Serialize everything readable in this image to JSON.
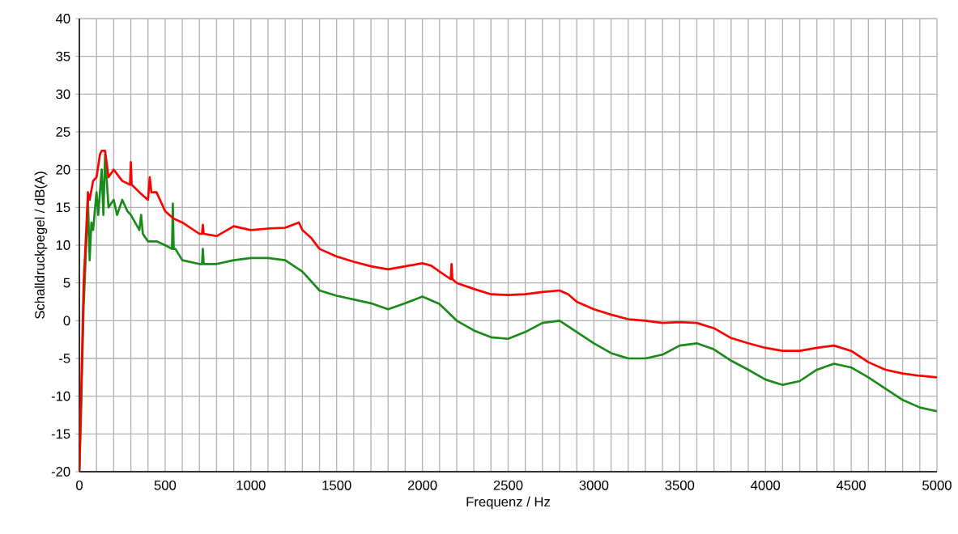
{
  "chart_data": {
    "type": "line",
    "xlabel": "Frequenz / Hz",
    "ylabel": "Schalldruckpegel / dB(A)",
    "xlim": [
      0,
      5000
    ],
    "ylim": [
      -20,
      40
    ],
    "xticks": [
      0,
      {
        "value": 100,
        "label": null
      },
      {
        "value": 200,
        "label": null
      },
      {
        "value": 300,
        "label": null
      },
      {
        "value": 400,
        "label": null
      },
      500,
      {
        "value": 600,
        "label": null
      },
      {
        "value": 700,
        "label": null
      },
      {
        "value": 800,
        "label": null
      },
      {
        "value": 900,
        "label": null
      },
      1000,
      {
        "value": 1100,
        "label": null
      },
      {
        "value": 1200,
        "label": null
      },
      {
        "value": 1300,
        "label": null
      },
      {
        "value": 1400,
        "label": null
      },
      1500,
      {
        "value": 1600,
        "label": null
      },
      {
        "value": 1700,
        "label": null
      },
      {
        "value": 1800,
        "label": null
      },
      {
        "value": 1900,
        "label": null
      },
      2000,
      {
        "value": 2100,
        "label": null
      },
      {
        "value": 2200,
        "label": null
      },
      {
        "value": 2300,
        "label": null
      },
      {
        "value": 2400,
        "label": null
      },
      2500,
      {
        "value": 2600,
        "label": null
      },
      {
        "value": 2700,
        "label": null
      },
      {
        "value": 2800,
        "label": null
      },
      {
        "value": 2900,
        "label": null
      },
      3000,
      {
        "value": 3100,
        "label": null
      },
      {
        "value": 3200,
        "label": null
      },
      {
        "value": 3300,
        "label": null
      },
      {
        "value": 3400,
        "label": null
      },
      3500,
      {
        "value": 3600,
        "label": null
      },
      {
        "value": 3700,
        "label": null
      },
      {
        "value": 3800,
        "label": null
      },
      {
        "value": 3900,
        "label": null
      },
      4000,
      {
        "value": 4100,
        "label": null
      },
      {
        "value": 4200,
        "label": null
      },
      {
        "value": 4300,
        "label": null
      },
      {
        "value": 4400,
        "label": null
      },
      4500,
      {
        "value": 4600,
        "label": null
      },
      {
        "value": 4700,
        "label": null
      },
      {
        "value": 4800,
        "label": null
      },
      {
        "value": 4900,
        "label": null
      },
      5000
    ],
    "yticks": [
      -20,
      -15,
      -10,
      -5,
      0,
      5,
      10,
      15,
      20,
      25,
      30,
      35,
      40
    ],
    "grid": true,
    "marker": "none",
    "line_style": "solid",
    "series": [
      {
        "color": "#1a8a1a",
        "x": [
          0,
          10,
          25,
          40,
          50,
          60,
          70,
          80,
          100,
          110,
          130,
          140,
          150,
          170,
          200,
          220,
          250,
          280,
          300,
          350,
          360,
          370,
          400,
          450,
          500,
          540,
          545,
          550,
          560,
          600,
          700,
          715,
          720,
          725,
          800,
          900,
          1000,
          1100,
          1200,
          1300,
          1400,
          1500,
          1600,
          1700,
          1800,
          1900,
          2000,
          2100,
          2200,
          2300,
          2400,
          2500,
          2600,
          2700,
          2800,
          2900,
          3000,
          3100,
          3200,
          3300,
          3400,
          3500,
          3600,
          3700,
          3800,
          3900,
          4000,
          4100,
          4200,
          4300,
          4400,
          4500,
          4600,
          4700,
          4800,
          4900,
          5000
        ],
        "values": [
          -20,
          -12,
          2,
          10,
          16,
          8,
          13,
          12,
          17,
          14,
          20,
          14,
          22,
          15,
          16,
          14,
          16,
          14.5,
          14,
          12,
          14,
          11.5,
          10.5,
          10.5,
          10,
          9.5,
          15.5,
          9.5,
          9.5,
          8,
          7.5,
          7.5,
          9.5,
          7.5,
          7.5,
          8,
          8.3,
          8.3,
          8,
          6.5,
          4,
          3.3,
          2.8,
          2.3,
          1.5,
          2.3,
          3.2,
          2.2,
          0,
          -1.3,
          -2.2,
          -2.4,
          -1.5,
          -0.3,
          0,
          -1.5,
          -3,
          -4.3,
          -5,
          -5,
          -4.5,
          -3.3,
          -3,
          -3.8,
          -5.3,
          -6.5,
          -7.8,
          -8.5,
          -8,
          -6.5,
          -5.7,
          -6.2,
          -7.5,
          -9,
          -10.5,
          -11.5,
          -12
        ]
      },
      {
        "color": "#ff0000",
        "x": [
          0,
          10,
          25,
          40,
          50,
          60,
          80,
          100,
          120,
          130,
          150,
          170,
          200,
          250,
          295,
          300,
          305,
          350,
          400,
          410,
          420,
          450,
          500,
          550,
          600,
          700,
          715,
          720,
          725,
          800,
          900,
          1000,
          1100,
          1200,
          1280,
          1300,
          1350,
          1400,
          1500,
          1600,
          1700,
          1800,
          1900,
          2000,
          2050,
          2100,
          2165,
          2170,
          2175,
          2200,
          2300,
          2400,
          2500,
          2600,
          2700,
          2800,
          2850,
          2900,
          3000,
          3100,
          3200,
          3300,
          3400,
          3500,
          3600,
          3700,
          3800,
          3900,
          4000,
          4100,
          4200,
          4300,
          4400,
          4500,
          4600,
          4700,
          4800,
          4900,
          5000
        ],
        "values": [
          -20,
          -10,
          5,
          12,
          17,
          16,
          18.5,
          19,
          22,
          22.5,
          22.5,
          19,
          20,
          18.5,
          18,
          21,
          18,
          17,
          16,
          19,
          17,
          17,
          14.5,
          13.5,
          13,
          11.5,
          11.5,
          12.7,
          11.5,
          11.2,
          12.5,
          12,
          12.2,
          12.3,
          13,
          12,
          11,
          9.5,
          8.5,
          7.8,
          7.2,
          6.8,
          7.2,
          7.6,
          7.3,
          6.5,
          5.5,
          7.5,
          5.5,
          5,
          4.2,
          3.5,
          3.4,
          3.5,
          3.8,
          4,
          3.5,
          2.5,
          1.5,
          0.8,
          0.2,
          0,
          -0.3,
          -0.2,
          -0.3,
          -1,
          -2.3,
          -3,
          -3.6,
          -4,
          -4,
          -3.6,
          -3.3,
          -4,
          -5.5,
          -6.5,
          -7,
          -7.3,
          -7.5
        ]
      }
    ]
  }
}
